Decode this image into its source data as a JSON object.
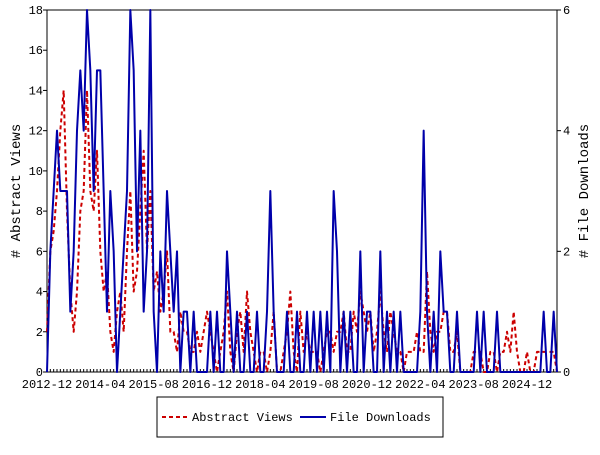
{
  "chart_data": {
    "type": "line",
    "categories": [
      "2012-12",
      null,
      null,
      null,
      null,
      null,
      null,
      null,
      null,
      null,
      null,
      null,
      null,
      null,
      null,
      null,
      "2014-04",
      null,
      null,
      null,
      null,
      null,
      null,
      null,
      null,
      null,
      null,
      null,
      null,
      null,
      null,
      null,
      "2015-08",
      null,
      null,
      null,
      null,
      null,
      null,
      null,
      null,
      null,
      null,
      null,
      null,
      null,
      null,
      null,
      "2016-12",
      null,
      null,
      null,
      null,
      null,
      null,
      null,
      null,
      null,
      null,
      null,
      null,
      null,
      null,
      null,
      "2018-04",
      null,
      null,
      null,
      null,
      null,
      null,
      null,
      null,
      null,
      null,
      null,
      null,
      null,
      null,
      null,
      "2019-08",
      null,
      null,
      null,
      null,
      null,
      null,
      null,
      null,
      null,
      null,
      null,
      null,
      null,
      null,
      null,
      "2020-12",
      null,
      null,
      null,
      null,
      null,
      null,
      null,
      null,
      null,
      null,
      null,
      null,
      null,
      null,
      null,
      "2022-04",
      null,
      null,
      null,
      null,
      null,
      null,
      null,
      null,
      null,
      null,
      null,
      null,
      null,
      null,
      null,
      "2023-08",
      null,
      null,
      null,
      null,
      null,
      null,
      null,
      null,
      null,
      null,
      null,
      null,
      null,
      null,
      null,
      "2024-12",
      null,
      null,
      null,
      null,
      null,
      null,
      null,
      null,
      null
    ],
    "ylabel": "# Abstract Views",
    "y2label": "# File Downloads",
    "ylim": [
      0,
      18
    ],
    "yticks": [
      0,
      2,
      4,
      6,
      8,
      10,
      12,
      14,
      16,
      18
    ],
    "y2lim": [
      0,
      6
    ],
    "y2ticks": [
      0,
      2,
      4,
      6
    ],
    "legend": "bottom",
    "series": [
      {
        "name": "Abstract Views",
        "color": "#cc0000",
        "dashed": true,
        "values": [
          2,
          6,
          7,
          9,
          12,
          14,
          8,
          4,
          2,
          4,
          8,
          9,
          14,
          9,
          8,
          11,
          6,
          4,
          5,
          2,
          1,
          3,
          4,
          2,
          6,
          9,
          4,
          5,
          8,
          11,
          6,
          9,
          4,
          5,
          3,
          4,
          6,
          2,
          2,
          1,
          3,
          2,
          2,
          1,
          1,
          2,
          1,
          2,
          3,
          2,
          1,
          0,
          1,
          2,
          4,
          1,
          0,
          2,
          3,
          1,
          4,
          2,
          1,
          0,
          1,
          1,
          0,
          1,
          3,
          0,
          0,
          1,
          2,
          4,
          1,
          0,
          3,
          1,
          2,
          1,
          1,
          1,
          0,
          1,
          2,
          2,
          1,
          2,
          2,
          3,
          1,
          1,
          3,
          2,
          4,
          3,
          2,
          3,
          1,
          2,
          4,
          2,
          1,
          3,
          2,
          1,
          1,
          0,
          1,
          1,
          1,
          2,
          1,
          1,
          5,
          2,
          1,
          2,
          2,
          3,
          3,
          1,
          1,
          2,
          0,
          0,
          0,
          0,
          1,
          1,
          1,
          0,
          0,
          1,
          1,
          0,
          1,
          1,
          2,
          1,
          3,
          1,
          0,
          0,
          1,
          0,
          0,
          1,
          1,
          1,
          1,
          1,
          1,
          0
        ]
      },
      {
        "name": "File Downloads",
        "color": "#0000aa",
        "dashed": false,
        "axis": "y2",
        "values": [
          0,
          2,
          3,
          4,
          3,
          3,
          3,
          1,
          2,
          4,
          5,
          4,
          6,
          5,
          3,
          5,
          5,
          3,
          1,
          3,
          2,
          0,
          1,
          2,
          3,
          6,
          5,
          2,
          4,
          1,
          2,
          6,
          1,
          0,
          2,
          1,
          3,
          2,
          1,
          2,
          0,
          1,
          1,
          0,
          1,
          0,
          0,
          0,
          0,
          1,
          0,
          1,
          0,
          0,
          2,
          1,
          0,
          1,
          0,
          0,
          1,
          0,
          0,
          1,
          0,
          0,
          1,
          3,
          1,
          0,
          0,
          0,
          1,
          0,
          0,
          1,
          0,
          0,
          1,
          0,
          1,
          0,
          1,
          0,
          1,
          0,
          3,
          2,
          0,
          1,
          0,
          1,
          0,
          0,
          2,
          0,
          1,
          1,
          0,
          0,
          2,
          0,
          1,
          0,
          1,
          0,
          1,
          0,
          0,
          0,
          0,
          0,
          1,
          4,
          1,
          0,
          1,
          0,
          2,
          1,
          1,
          0,
          0,
          1,
          0,
          0,
          0,
          0,
          0,
          1,
          0,
          1,
          0,
          0,
          0,
          1,
          0,
          0,
          0,
          0,
          0,
          0,
          0,
          0,
          0,
          0,
          0,
          0,
          0,
          1,
          0,
          0,
          1,
          0
        ]
      }
    ]
  }
}
